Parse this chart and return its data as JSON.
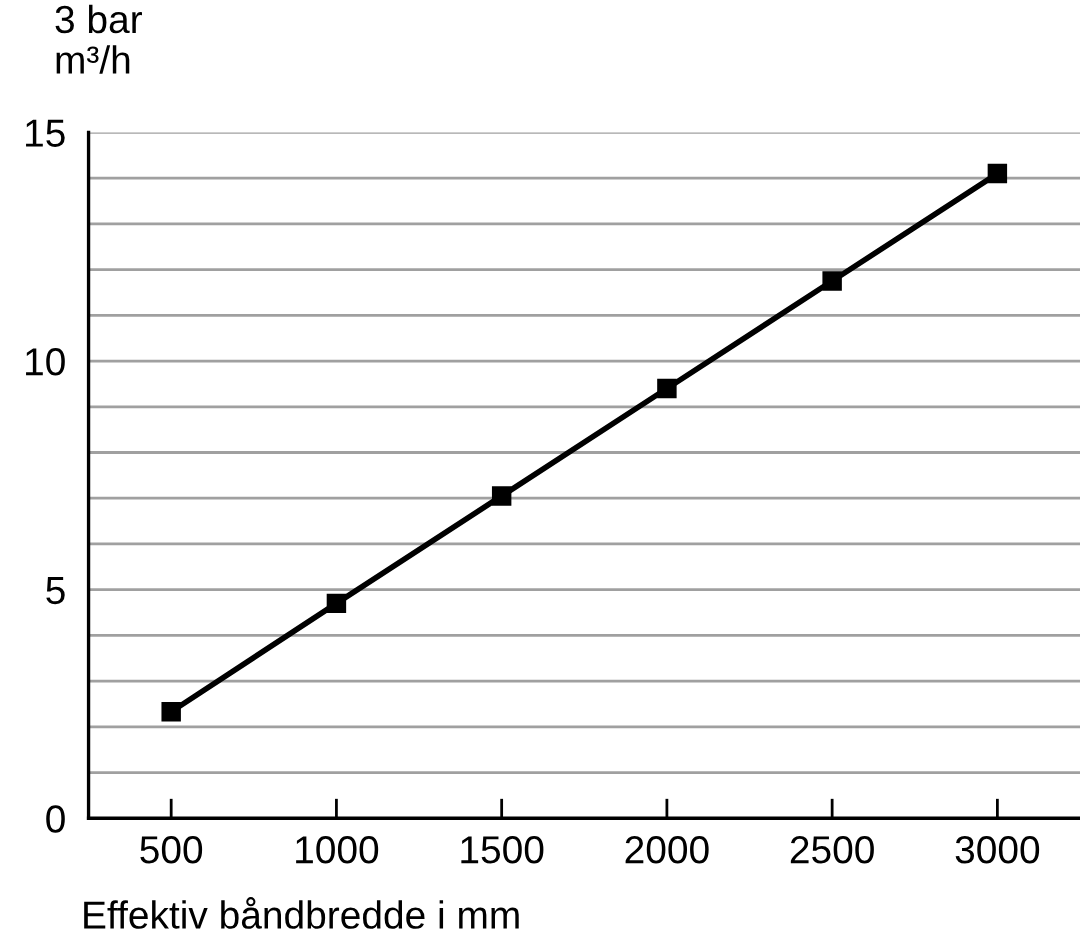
{
  "chart_data": {
    "type": "line",
    "ylabel": "3 bar\nm³/h",
    "xlabel": "Effektiv båndbredde i mm",
    "x": [
      500,
      1000,
      1500,
      2000,
      2500,
      3000
    ],
    "series": [
      {
        "color": "#000000",
        "values": [
          2.33,
          4.7,
          7.05,
          9.4,
          11.75,
          14.1
        ]
      }
    ],
    "marker": "square",
    "line_style": "solid",
    "xlim": [
      250,
      3250
    ],
    "xticks": [
      500,
      1000,
      1500,
      2000,
      2500,
      3000
    ],
    "ylim": [
      0,
      15
    ],
    "yticks": [
      0,
      {
        "value": 1,
        "label": null
      },
      {
        "value": 2,
        "label": null
      },
      {
        "value": 3,
        "label": null
      },
      {
        "value": 4,
        "label": null
      },
      5,
      {
        "value": 6,
        "label": null
      },
      {
        "value": 7,
        "label": null
      },
      {
        "value": 8,
        "label": null
      },
      {
        "value": 9,
        "label": null
      },
      10,
      {
        "value": 11,
        "label": null
      },
      {
        "value": 12,
        "label": null
      },
      {
        "value": 13,
        "label": null
      },
      {
        "value": 14,
        "label": null
      },
      15
    ],
    "grid": "y",
    "legend": false
  }
}
